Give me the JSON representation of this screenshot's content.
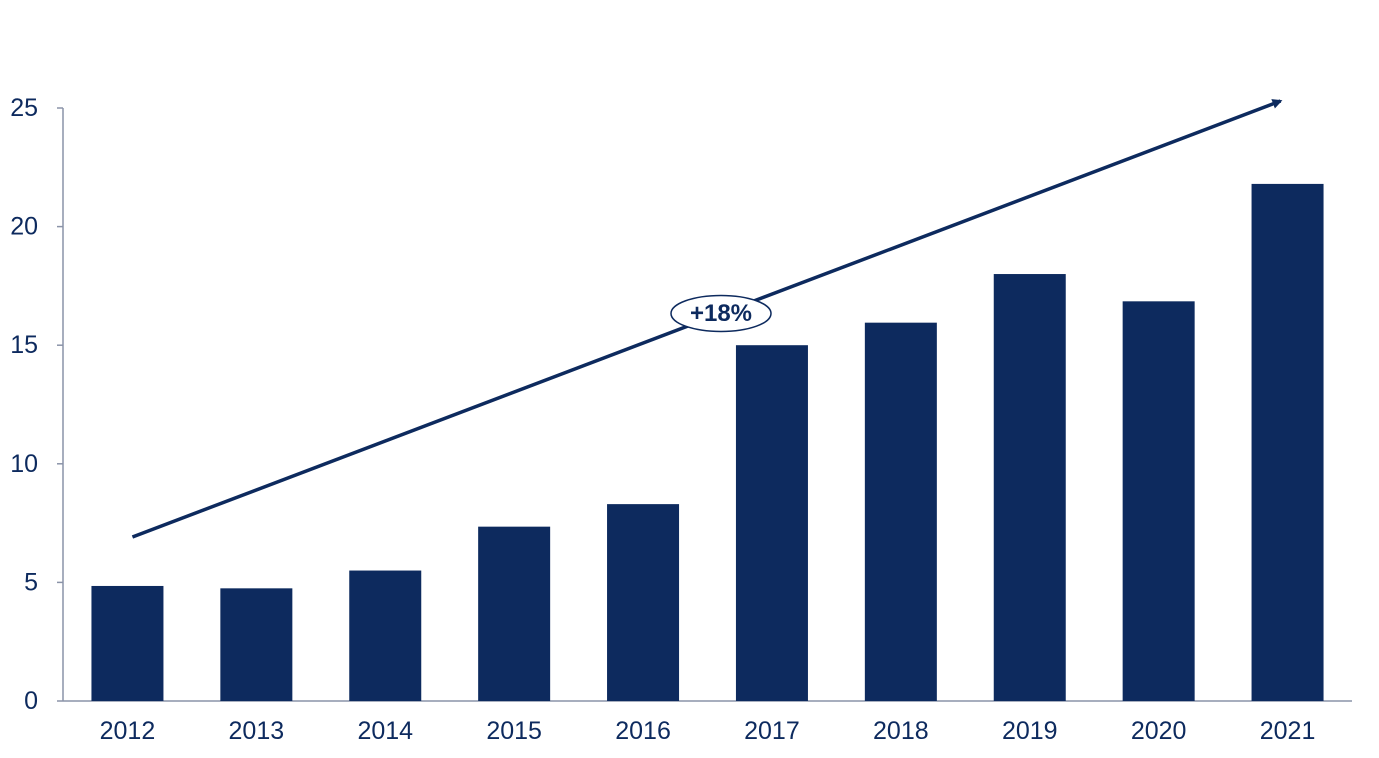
{
  "chart_data": {
    "type": "bar",
    "categories": [
      "2012",
      "2013",
      "2014",
      "2015",
      "2016",
      "2017",
      "2018",
      "2019",
      "2020",
      "2021"
    ],
    "values": [
      4.85,
      4.75,
      5.5,
      7.35,
      8.3,
      15.0,
      15.95,
      18.0,
      16.85,
      21.8
    ],
    "title": "",
    "xlabel": "",
    "ylabel": "",
    "ylim": [
      0,
      25
    ],
    "yticks": [
      "0",
      "5",
      "10",
      "15",
      "20",
      "25"
    ],
    "grid": false,
    "bar_color": "#0d2a5e",
    "trend_arrow": {
      "from_category": "2012",
      "to_category": "2021",
      "label": "+18%",
      "color": "#0d2a5e"
    }
  }
}
